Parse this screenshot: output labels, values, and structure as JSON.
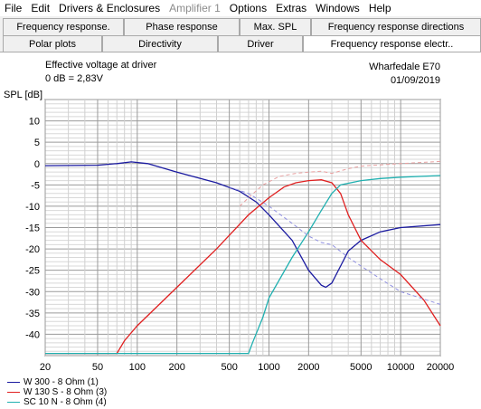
{
  "menu": {
    "items": [
      {
        "label": "File",
        "enabled": true
      },
      {
        "label": "Edit",
        "enabled": true
      },
      {
        "label": "Drivers & Enclosures",
        "enabled": true
      },
      {
        "label": "Amplifier 1",
        "enabled": false
      },
      {
        "label": "Options",
        "enabled": true
      },
      {
        "label": "Extras",
        "enabled": true
      },
      {
        "label": "Windows",
        "enabled": true
      },
      {
        "label": "Help",
        "enabled": true
      }
    ]
  },
  "tabs": {
    "row1": [
      "Frequency response.",
      "Phase response",
      "Max. SPL",
      "Frequency response directions"
    ],
    "row2": [
      "Polar plots",
      "Directivity",
      "Driver",
      "Frequency response electr.."
    ],
    "active": "Frequency response electr.."
  },
  "header": {
    "left_line1": "Effective voltage at driver",
    "left_line2": "0 dB = 2,83V",
    "right_line1": "Wharfedale E70",
    "right_line2": "01/09/2019"
  },
  "chart_data": {
    "type": "line",
    "ylabel": "SPL [dB]",
    "xlabel": "",
    "x_scale": "log",
    "xlim": [
      20,
      20000
    ],
    "ylim": [
      -45,
      15
    ],
    "grid": true,
    "x_ticks": [
      "20",
      "50",
      "100",
      "200",
      "500",
      "1000",
      "2000",
      "5000",
      "10000",
      "20000"
    ],
    "y_ticks": [
      "10",
      "5",
      "0",
      "-5",
      "-10",
      "-15",
      "-20",
      "-25",
      "-30",
      "-35",
      "-40"
    ],
    "legend_position": "bottom-left",
    "series": [
      {
        "name": "W 300 - 8 Ohm (1)",
        "color": "#1a1aa0",
        "points": [
          [
            20,
            -0.5
          ],
          [
            50,
            -0.4
          ],
          [
            70,
            0
          ],
          [
            90,
            0.4
          ],
          [
            120,
            0
          ],
          [
            200,
            -2
          ],
          [
            400,
            -4.5
          ],
          [
            600,
            -6.5
          ],
          [
            800,
            -9
          ],
          [
            1000,
            -12
          ],
          [
            1500,
            -18
          ],
          [
            2000,
            -25
          ],
          [
            2500,
            -28.5
          ],
          [
            2700,
            -29
          ],
          [
            3000,
            -28
          ],
          [
            3500,
            -24
          ],
          [
            4000,
            -20.5
          ],
          [
            5000,
            -18
          ],
          [
            7000,
            -16
          ],
          [
            10000,
            -15
          ],
          [
            20000,
            -14.3
          ]
        ]
      },
      {
        "name": "W 130 S - 8 Ohm (3)",
        "color": "#e02020",
        "points": [
          [
            20,
            -44.5
          ],
          [
            70,
            -44.5
          ],
          [
            80,
            -41.5
          ],
          [
            100,
            -38
          ],
          [
            200,
            -29
          ],
          [
            400,
            -20
          ],
          [
            700,
            -12
          ],
          [
            1000,
            -8
          ],
          [
            1300,
            -5.5
          ],
          [
            1600,
            -4.5
          ],
          [
            2000,
            -4
          ],
          [
            2500,
            -3.8
          ],
          [
            3000,
            -4.5
          ],
          [
            3500,
            -7
          ],
          [
            4000,
            -12
          ],
          [
            5000,
            -18
          ],
          [
            7000,
            -22.5
          ],
          [
            10000,
            -26
          ],
          [
            15000,
            -32
          ],
          [
            20000,
            -38
          ]
        ]
      },
      {
        "name": "SC 10 N - 8 Ohm (4)",
        "color": "#20b0b0",
        "points": [
          [
            20,
            -44.5
          ],
          [
            700,
            -44.5
          ],
          [
            750,
            -42
          ],
          [
            900,
            -36
          ],
          [
            1000,
            -31.5
          ],
          [
            1500,
            -22
          ],
          [
            2000,
            -16
          ],
          [
            2500,
            -11
          ],
          [
            3000,
            -7
          ],
          [
            3500,
            -5
          ],
          [
            5000,
            -4
          ],
          [
            7000,
            -3.5
          ],
          [
            10000,
            -3.2
          ],
          [
            20000,
            -2.8
          ]
        ]
      },
      {
        "name": "",
        "color": "#e8a0a0",
        "dashed": true,
        "points": [
          [
            600,
            -10
          ],
          [
            700,
            -8
          ],
          [
            900,
            -5
          ],
          [
            1200,
            -3
          ],
          [
            1600,
            -2.3
          ],
          [
            2000,
            -2
          ],
          [
            2500,
            -1.8
          ],
          [
            3000,
            -2.3
          ],
          [
            4000,
            -1.2
          ],
          [
            5000,
            -0.6
          ],
          [
            7000,
            -0.3
          ],
          [
            10000,
            0
          ],
          [
            20000,
            0.5
          ]
        ]
      },
      {
        "name": "",
        "color": "#9090e0",
        "dashed": true,
        "points": [
          [
            500,
            -5.5
          ],
          [
            700,
            -7
          ],
          [
            1000,
            -10
          ],
          [
            1500,
            -14
          ],
          [
            2000,
            -17
          ],
          [
            2500,
            -18.5
          ],
          [
            3000,
            -19
          ],
          [
            4000,
            -22
          ],
          [
            5000,
            -24
          ],
          [
            7000,
            -27
          ],
          [
            10000,
            -30
          ],
          [
            20000,
            -33
          ]
        ]
      }
    ]
  }
}
